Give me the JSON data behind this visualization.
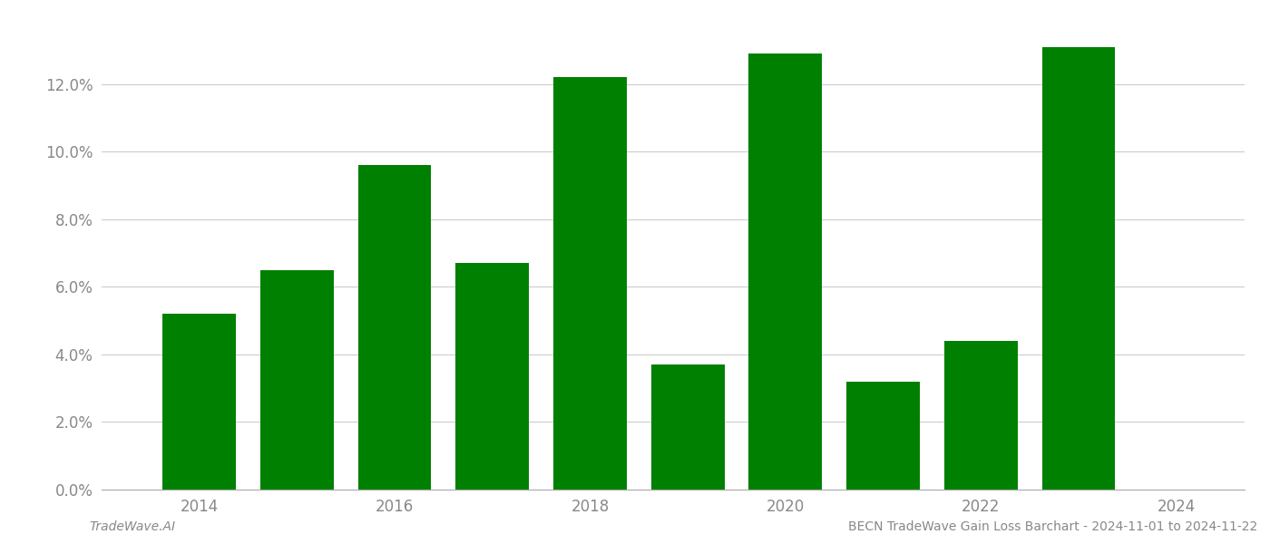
{
  "years": [
    2014,
    2015,
    2016,
    2017,
    2018,
    2019,
    2020,
    2021,
    2022,
    2023
  ],
  "values": [
    0.052,
    0.065,
    0.096,
    0.067,
    0.122,
    0.037,
    0.129,
    0.032,
    0.044,
    0.131
  ],
  "bar_color": "#008000",
  "background_color": "#ffffff",
  "footer_left": "TradeWave.AI",
  "footer_right": "BECN TradeWave Gain Loss Barchart - 2024-11-01 to 2024-11-22",
  "ylim_min": 0.0,
  "ylim_max": 0.14,
  "ytick_step": 0.02,
  "yticks": [
    0.0,
    0.02,
    0.04,
    0.06,
    0.08,
    0.1,
    0.12
  ],
  "grid_color": "#cccccc",
  "footer_fontsize": 10,
  "bar_width": 0.75,
  "xlim_min": 2013.0,
  "xlim_max": 2024.7,
  "xticks": [
    2014,
    2016,
    2018,
    2020,
    2022,
    2024
  ],
  "xtick_labels": [
    "2014",
    "2016",
    "2018",
    "2020",
    "2022",
    "2024"
  ]
}
